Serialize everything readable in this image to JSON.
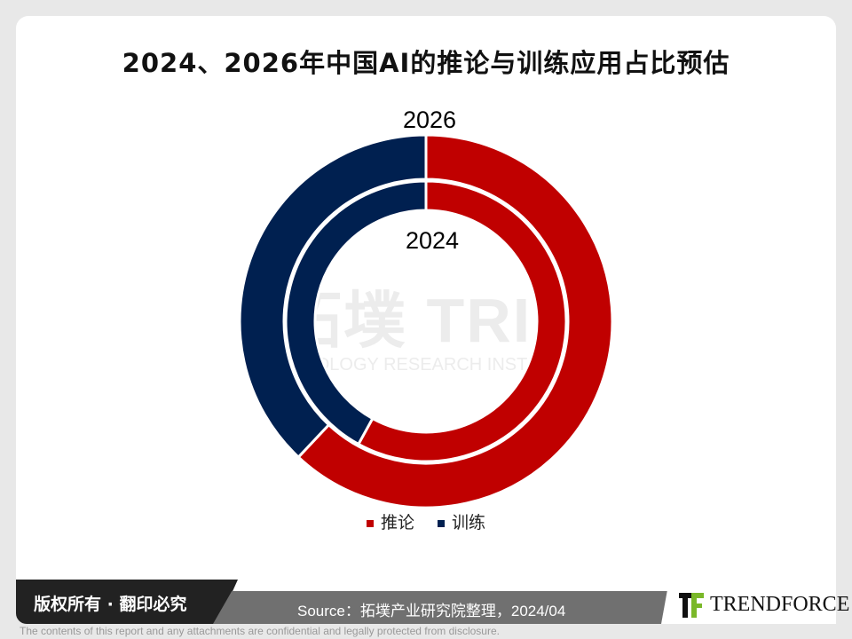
{
  "chart_data": {
    "type": "pie",
    "subtype": "nested-donut",
    "title": "2024、2026年中国AI的推论与训练应用占比预估",
    "categories": [
      "推论",
      "训练"
    ],
    "colors": [
      "#c00000",
      "#002050"
    ],
    "rings": [
      {
        "name": "2026",
        "position": "outer",
        "values": [
          62,
          38
        ]
      },
      {
        "name": "2024",
        "position": "inner",
        "values": [
          58,
          42
        ]
      }
    ],
    "legend_position": "bottom"
  },
  "watermark": {
    "cn": "拓墣",
    "en": "TOPOLOGY RESEARCH INSTITUTE",
    "logo": "TRI"
  },
  "footer": {
    "copyright": "版权所有 · 翻印必究",
    "source": "Source：拓墣产业研究院整理，2024/04",
    "brand": "TRENDFORCE",
    "disclaimer": "The contents of this report and any attachments are confidential and legally protected from disclosure."
  }
}
